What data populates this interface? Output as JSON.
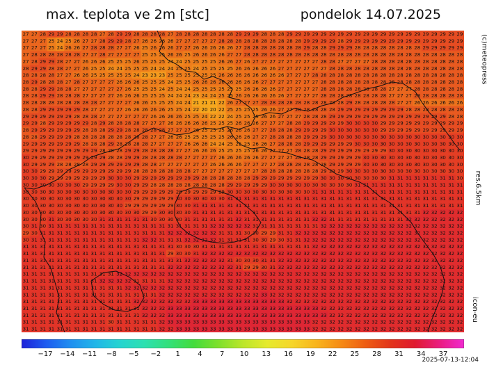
{
  "header": {
    "title": "max. teplota ve 2m [stc]",
    "date": "pondelok 14.07.2025"
  },
  "side_labels": {
    "credit": "(c)meteopress",
    "resolution": "res.6.5km",
    "model": "icon-eu"
  },
  "timestamp": "2025-07-13-12:04",
  "map": {
    "variable": "max 2m temperature",
    "unit": "°C",
    "grid_rows": [
      "27 27 28 29 29 28 28 28 28 27 28 29 29 28 28 28 28 27 28 28 28 28 28 28 28 29 29 29 28 28 28 29 29 29 29 29 29 29 29 29 29 29 29 29 29 29 29 29 29 29 29 29",
      "27 27 27 25 24 25 26 27 27 28 29 29 28 27 26 26 26 26 27 27 27 27 27 28 28 28 28 28 28 28 28 28 28 29 29 29 29 28 29 29 29 29 29 29 29 29 29 29 29 29 29 29",
      "27 27 27 25 24 26 26 27 28 28 28 27 27 26 25 26 26 26 27 27 26 26 26 26 26 27 28 28 28 28 28 28 28 29 28 28 29 29 29 28 28 28 28 28 28 28 28 29 29 29 29 29",
      "27 28 28 28 28 28 28 27 27 28 27 27 27 27 25 25 25 26 26 25 26 26 26 26 27 27 28 28 28 28 28 28 28 28 28 28 28 28 28 28 28 28 28 28 28 28 28 28 28 28 28 28",
      "27 28 29 29 28 27 27 26 26 26 25 25 25 26 25 25 25 24 24 25 25 25 25 26 26 27 26 27 27 27 27 27 27 27 27 28 28 27 27 27 27 28 28 28 28 28 28 28 28 28 28 28",
      "28 29 29 28 28 27 27 26 25 25 24 24 25 25 25 24 24 24 25 25 24 25 25 25 25 26 26 26 26 26 27 27 27 27 27 27 28 28 28 28 28 28 28 28 28 28 28 28 28 28 28 28",
      "28 28 28 28 27 27 26 26 25 25 25 25 25 24 23 23 23 25 25 25 25 25 25 26 26 26 26 26 26 26 26 27 27 27 28 28 28 28 28 28 28 28 28 28 28 28 28 28 28 28 28 28",
      "28 29 28 28 28 27 28 27 27 27 27 26 26 26 25 25 25 24 25 25 26 26 26 26 26 26 26 26 27 27 27 27 27 27 27 28 28 28 28 28 28 28 28 28 28 28 28 28 28 28 28 28",
      "28 28 29 29 28 28 27 27 27 27 27 27 26 25 25 25 24 25 24 24 25 25 25 25 25 25 26 26 26 26 27 27 27 27 27 28 28 28 28 28 28 28 28 27 27 27 28 28 28 28 28 28",
      "28 28 29 29 28 28 28 27 27 27 27 26 26 26 25 25 25 24 24 24 23 24 24 25 25 26 26 26 26 26 26 27 27 27 27 28 28 28 28 28 28 28 28 27 27 27 28 28 28 28 28 28",
      "28 28 28 28 28 28 28 28 28 27 27 27 27 26 26 25 25 25 24 24 21 21 21 22 26 27 27 27 28 28 28 28 28 28 28 28 28 28 29 28 28 28 28 28 27 27 26 26 26 26 26 26",
      "28 28 29 29 29 29 29 28 27 27 27 27 26 26 26 26 26 25 25 24 22 20 20 22 25 25 25 25 26 26 27 27 28 28 28 28 28 29 29 29 29 29 29 29 29 28 28 28 28 28 28 28",
      "29 29 29 29 29 29 28 28 28 27 27 27 27 27 27 26 26 26 26 25 25 24 22 22 24 25 25 25 26 26 27 27 27 28 28 28 29 29 29 29 29 29 29 29 29 29 29 29 29 29 28 28",
      "29 29 28 29 29 29 29 29 28 29 28 28 28 28 27 27 27 26 26 26 26 26 25 25 25 26 26 26 27 27 27 28 28 29 29 29 29 29 30 30 30 30 29 29 29 29 29 29 29 29 29 29",
      "28 29 29 29 29 29 29 28 28 28 29 29 28 28 28 28 28 27 27 27 26 25 25 25 26 26 26 27 27 28 28 28 29 29 29 29 30 30 30 30 30 30 29 29 29 29 29 29 29 29 29 29",
      "28 28 29 29 29 29 28 28 28 28 28 28 28 28 28 27 27 26 26 25 25 25 25 25 26 26 26 27 27 28 28 28 28 29 29 29 30 30 30 30 30 30 30 30 30 30 30 30 30 30 30 30",
      "29 29 29 29 29 29 29 28 28 28 29 28 28 28 28 27 27 27 27 26 26 26 24 24 25 25 25 26 26 27 28 28 28 29 29 29 29 29 29 30 30 30 30 30 30 30 30 30 30 30 30 30",
      "29 29 29 29 29 29 29 29 29 28 28 28 29 29 28 28 28 28 27 27 26 26 26 25 25 25 25 26 26 27 27 27 28 28 28 29 29 29 29 29 29 29 29 30 30 30 30 30 30 30 30 30",
      "30 29 29 29 29 29 29 29 29 29 28 28 29 29 28 28 28 28 28 27 27 27 27 26 26 26 26 26 27 27 27 27 28 28 28 29 29 29 29 29 30 30 30 30 30 30 30 30 30 30 30 30",
      "30 29 29 29 28 28 28 28 29 29 29 29 29 29 28 28 27 27 27 27 27 27 26 26 26 26 27 27 27 27 28 28 28 28 28 28 29 29 29 29 30 30 30 30 30 30 30 30 30 30 30 30",
      "30 30 29 29 29 29 29 29 29 29 29 29 29 28 28 28 28 28 28 28 27 27 27 27 27 27 27 27 28 28 28 28 28 28 28 29 29 29 30 30 30 30 30 30 30 30 30 30 30 30 30 30",
      "30 30 30 29 29 29 29 29 29 29 30 30 30 29 29 29 29 29 29 29 29 28 28 28 28 28 28 29 29 29 29 29 29 29 29 30 30 30 30 30 30 30 30 31 31 31 31 31 31 31 31 30",
      "30 30 30 30 30 30 30 29 29 29 29 30 30 29 29 28 28 28 28 28 28 28 28 28 29 29 29 29 29 30 30 30 30 30 30 30 30 30 30 31 31 31 31 31 31 31 31 31 31 31 31 31",
      "30 30 30 30 30 30 30 30 30 30 30 30 30 29 29 29 29 29 29 29 29 29 29 29 30 30 30 30 30 30 30 30 30 30 31 31 31 31 31 31 31 31 31 31 31 31 31 31 31 31 31 31",
      "30 30 30 30 30 30 30 30 30 30 30 30 30 29 29 29 29 29 30 30 30 30 30 30 31 31 31 31 31 31 31 31 31 31 31 31 31 31 31 31 31 31 31 31 31 31 31 31 31 31 31 31",
      "30 30 30 30 30 30 30 30 30 30 30 30 29 29 29 29 29 29 30 30 31 31 31 31 31 31 31 31 31 31 31 31 31 31 31 31 31 31 31 31 31 31 31 31 31 31 31 31 31 31 31 31",
      "30 30 30 30 30 30 30 30 30 30 30 30 30 30 29 29 30 30 30 30 31 31 31 31 31 31 31 31 31 31 31 31 31 31 31 31 31 31 31 31 31 31 31 31 31 31 31 32 32 32 32 32",
      "30 30 30 31 30 30 30 30 30 31 31 31 31 31 31 30 30 30 30 31 31 31 31 31 31 32 31 31 31 31 31 31 31 31 32 32 31 31 31 31 31 31 31 31 31 32 32 32 32 32 32 32",
      "30 31 30 31 31 31 31 31 31 31 31 31 31 31 31 31 31 31 31 31 31 31 32 32 32 32 32 31 31 31 31 31 31 31 31 32 32 32 32 32 32 32 32 32 32 32 32 32 32 32 32 32",
      "29 30 31 31 31 31 31 31 31 31 31 31 31 31 31 31 31 32 32 32 32 32 32 31 31 31 30 30 29 29 31 31 32 32 32 32 32 32 32 32 32 32 32 32 32 32 32 32 32 32 32 32",
      "30 31 31 31 31 31 31 31 31 31 31 31 31 31 32 32 31 31 31 32 32 32 32 31 31 31 31 30 30 29 30 31 31 32 32 32 32 32 32 32 32 32 32 32 32 32 32 32 32 32 32 32",
      "31 31 31 31 31 31 31 31 31 31 31 31 31 31 31 31 31 31 30 30 30 31 31 31 31 31 31 31 31 31 31 31 31 31 32 32 32 32 32 32 32 32 32 32 32 32 32 32 32 32 32 32",
      "31 31 31 31 31 31 31 31 31 31 31 31 31 31 31 31 31 29 30 30 31 32 32 32 32 32 32 32 32 32 32 32 32 32 32 32 32 32 32 32 32 32 32 32 32 32 32 32 32 32 32 32",
      "31 31 31 31 31 31 31 31 31 31 31 31 31 31 31 31 31 31 31 32 32 32 32 32 31 30 30 30 31 31 32 32 32 32 32 32 32 32 32 32 32 32 32 32 32 32 32 32 32 32 32 32",
      "31 31 31 31 31 31 31 31 31 31 31 31 31 31 31 31 31 32 32 32 32 32 32 32 32 31 29 29 30 31 32 32 32 32 32 32 32 32 32 32 32 32 32 32 32 32 32 32 32 32 32 32",
      "31 31 31 31 31 31 31 31 31 31 31 32 32 32 32 32 32 32 32 32 32 32 32 32 32 32 32 32 32 32 32 32 32 32 32 32 32 32 32 32 32 32 32 32 32 32 32 32 32 32 32 32",
      "31 31 31 31 31 31 31 31 31 32 32 32 32 31 31 31 31 32 32 32 32 32 32 32 32 32 32 32 32 32 32 32 32 32 32 32 32 32 32 32 32 32 32 32 32 32 32 32 32 32 32 32",
      "31 31 31 31 31 31 31 31 31 31 31 31 32 32 32 32 32 32 32 32 32 32 32 32 32 32 32 32 32 32 32 32 32 32 32 32 32 32 32 32 32 32 32 32 32 32 32 32 32 32 32 32",
      "31 31 31 31 31 31 31 31 31 31 31 31 31 31 31 31 32 32 32 32 32 32 32 32 32 32 32 32 33 32 32 32 32 32 32 32 32 32 32 32 32 32 32 32 32 32 32 32 32 32 32 32",
      "31 31 31 31 31 31 31 31 31 31 31 31 31 32 32 32 32 32 32 32 33 33 33 33 33 33 33 33 33 33 33 32 32 32 32 32 32 32 32 32 32 32 32 32 32 32 32 32 32 32 32 32",
      "31 31 31 31 31 31 31 31 31 31 31 31 31 31 32 32 32 33 33 33 33 33 33 33 33 33 33 33 33 33 33 33 33 33 33 32 32 32 32 32 32 32 32 32 32 32 32 32 32 32 32 32",
      "31 31 31 31 31 31 31 31 31 31 31 31 31 31 32 32 32 33 33 33 33 33 33 33 33 33 33 33 33 33 33 33 33 33 33 33 32 32 32 32 32 32 32 32 32 32 32 32 32 32 32 32",
      "31 31 31 31 31 31 31 31 31 31 30 31 31 31 31 31 32 33 33 33 33 33 33 33 33 33 33 33 33 33 33 33 33 33 32 32 32 32 32 32 32 32 32 32 32 32 32 32 32 32 32 32",
      "31 31 31 31 31 31 31 31 31 31 31 31 31 31 31 31 32 32 33 33 33 33 33 33 33 33 33 33 33 33 33 33 33 33 32 32 32 32 32 32 32 32 32 32 32 32 32 32 32 32 32 32"
    ]
  },
  "colorbar": {
    "labels": [
      "−17",
      "−14",
      "−11",
      "−8",
      "−5",
      "−2",
      "1",
      "4",
      "7",
      "10",
      "13",
      "16",
      "19",
      "22",
      "25",
      "28",
      "31",
      "34",
      "37"
    ],
    "stops": [
      "#1e22d8",
      "#1e5cf0",
      "#1f8ff0",
      "#21b6e8",
      "#25d4d0",
      "#2ce0b0",
      "#33e07a",
      "#43dc3c",
      "#7ee02c",
      "#bbe62a",
      "#e6ea2c",
      "#f6d62a",
      "#f8b41c",
      "#f68a14",
      "#ee5c12",
      "#e2341a",
      "#e01a30",
      "#ea1c80",
      "#f02ad0"
    ],
    "temperature_colors": {
      "20": "#f6a81e",
      "22": "#f49a1e",
      "24": "#f08a1c",
      "25": "#ee7e1c",
      "26": "#ec721c",
      "27": "#ea661e",
      "28": "#e85a20",
      "29": "#e64c22",
      "30": "#e43e24",
      "31": "#e23428",
      "32": "#e02c2e",
      "33": "#de2634"
    }
  },
  "borders_color": "#111111"
}
